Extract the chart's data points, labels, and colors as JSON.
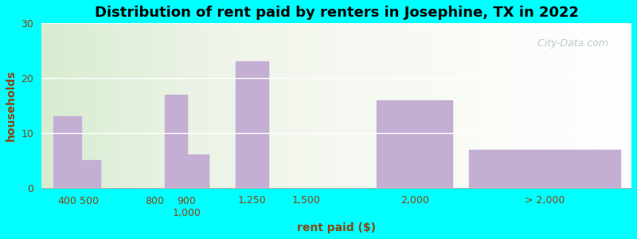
{
  "title": "Distribution of rent paid by renters in Josephine, TX in 2022",
  "xlabel": "rent paid ($)",
  "ylabel": "households",
  "bar_heights": [
    13,
    5,
    0,
    17,
    6,
    23,
    0,
    16,
    7
  ],
  "bar_color": "#c4aed4",
  "ylim": [
    0,
    30
  ],
  "yticks": [
    0,
    10,
    20,
    30
  ],
  "bg_color": "#00ffff",
  "grid_color": "#e8e8e8",
  "title_fontsize": 13,
  "label_fontsize": 10,
  "tick_fontsize": 9,
  "tick_label_color": "#8B4513",
  "watermark": "  City-Data.com",
  "x_tick_positions": [
    0,
    1,
    2,
    3,
    4,
    5,
    6,
    7,
    8
  ],
  "x_tick_labels": [
    "400",
    "500",
    "800",
    "900",
    "1,000",
    "1,250",
    "1,500",
    "2,000",
    "> 2,000"
  ],
  "label_tick_positions": [
    0,
    1,
    2,
    3.5,
    5,
    6,
    7,
    8
  ],
  "label_tick_labels": [
    "400",
    "500",
    "800",
    "9001,000",
    "1,250",
    "1,500",
    "2,000",
    "> 2,000"
  ]
}
